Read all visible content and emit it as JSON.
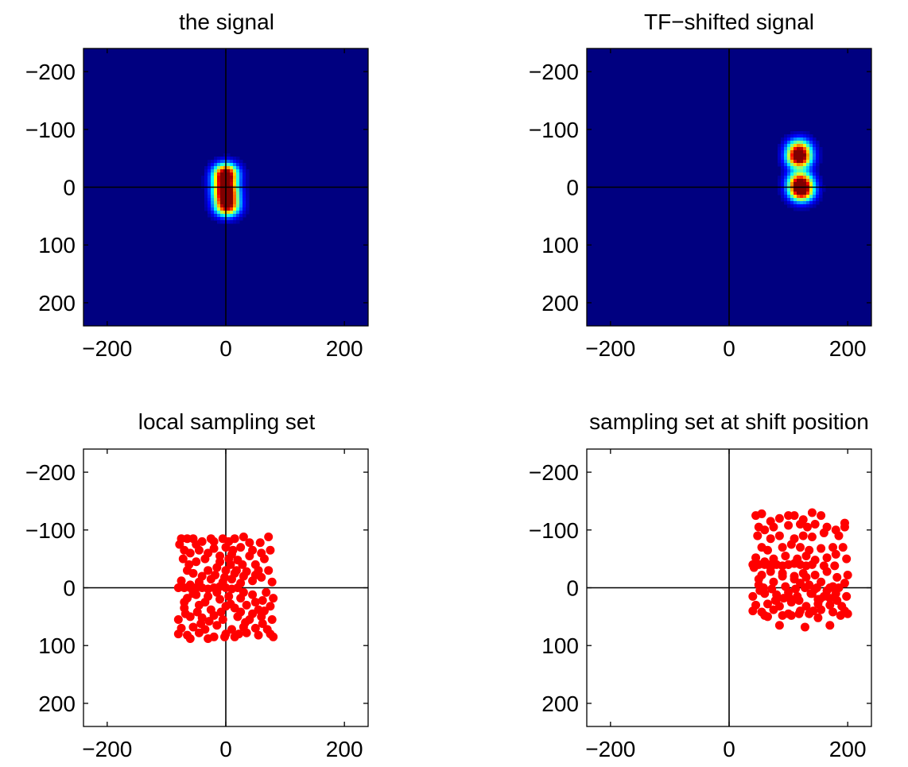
{
  "chart_data": [
    {
      "type": "heatmap",
      "title": "the signal",
      "xlim": [
        -240,
        240
      ],
      "ylim": [
        -240,
        240
      ],
      "y_reversed": true,
      "xticks": [
        -200,
        0,
        200
      ],
      "xtick_labels": [
        "−200",
        "0",
        "200"
      ],
      "yticks": [
        -200,
        -100,
        0,
        100,
        200
      ],
      "ytick_labels": [
        "−200",
        "−100",
        "0",
        "100",
        "200"
      ],
      "crosshair": [
        0,
        0
      ],
      "colormap": "jet",
      "blobs": [
        {
          "x": 0,
          "y": -25,
          "intensity": 0.85
        },
        {
          "x": 0,
          "y": 10,
          "intensity": 1.0
        },
        {
          "x": 2,
          "y": 33,
          "intensity": 0.95
        },
        {
          "x": -2,
          "y": -10,
          "intensity": 0.6
        }
      ]
    },
    {
      "type": "heatmap",
      "title": "TF−shifted signal",
      "xlim": [
        -240,
        240
      ],
      "ylim": [
        -240,
        240
      ],
      "y_reversed": true,
      "xticks": [
        -200,
        0,
        200
      ],
      "xtick_labels": [
        "−200",
        "0",
        "200"
      ],
      "yticks": [
        -200,
        -100,
        0,
        100,
        200
      ],
      "ytick_labels": [
        "−200",
        "−100",
        "0",
        "100",
        "200"
      ],
      "crosshair": [
        0,
        0
      ],
      "colormap": "jet",
      "blobs": [
        {
          "x": 118,
          "y": -68,
          "intensity": 0.6
        },
        {
          "x": 118,
          "y": -50,
          "intensity": 1.0
        },
        {
          "x": 120,
          "y": -10,
          "intensity": 0.85
        },
        {
          "x": 122,
          "y": 8,
          "intensity": 0.95
        }
      ]
    },
    {
      "type": "scatter",
      "title": "local sampling set",
      "xlim": [
        -240,
        240
      ],
      "ylim": [
        -240,
        240
      ],
      "y_reversed": true,
      "xticks": [
        -200,
        0,
        200
      ],
      "xtick_labels": [
        "−200",
        "0",
        "200"
      ],
      "yticks": [
        -200,
        -100,
        0,
        100,
        200
      ],
      "ytick_labels": [
        "−200",
        "−100",
        "0",
        "100",
        "200"
      ],
      "crosshair": [
        0,
        0
      ],
      "color": "#ff0000",
      "points": [
        [
          -75,
          -85
        ],
        [
          -65,
          -85
        ],
        [
          -55,
          -85
        ],
        [
          -40,
          -80
        ],
        [
          -25,
          -85
        ],
        [
          -5,
          -85
        ],
        [
          5,
          -80
        ],
        [
          15,
          -85
        ],
        [
          30,
          -88
        ],
        [
          72,
          -88
        ],
        [
          -70,
          -65
        ],
        [
          -60,
          -60
        ],
        [
          -45,
          -65
        ],
        [
          -20,
          -68
        ],
        [
          0,
          -70
        ],
        [
          12,
          -65
        ],
        [
          25,
          -70
        ],
        [
          45,
          -65
        ],
        [
          60,
          -60
        ],
        [
          75,
          -65
        ],
        [
          -72,
          -50
        ],
        [
          -50,
          -45
        ],
        [
          -35,
          -50
        ],
        [
          -10,
          -45
        ],
        [
          5,
          -50
        ],
        [
          20,
          -48
        ],
        [
          40,
          -55
        ],
        [
          65,
          -50
        ],
        [
          -65,
          -30
        ],
        [
          -55,
          -25
        ],
        [
          -30,
          -30
        ],
        [
          -15,
          -35
        ],
        [
          0,
          -30
        ],
        [
          15,
          -25
        ],
        [
          35,
          -28
        ],
        [
          55,
          -30
        ],
        [
          72,
          -30
        ],
        [
          -75,
          -12
        ],
        [
          -60,
          -5
        ],
        [
          -45,
          -10
        ],
        [
          -25,
          -15
        ],
        [
          -5,
          -10
        ],
        [
          10,
          -15
        ],
        [
          25,
          -8
        ],
        [
          45,
          -12
        ],
        [
          60,
          -18
        ],
        [
          78,
          -10
        ],
        [
          -80,
          0
        ],
        [
          -70,
          0
        ],
        [
          -60,
          0
        ],
        [
          -50,
          0
        ],
        [
          -40,
          0
        ],
        [
          -30,
          2
        ],
        [
          -20,
          0
        ],
        [
          -10,
          -2
        ],
        [
          0,
          0
        ],
        [
          10,
          2
        ],
        [
          20,
          0
        ],
        [
          -65,
          18
        ],
        [
          -50,
          12
        ],
        [
          -30,
          15
        ],
        [
          -10,
          20
        ],
        [
          5,
          15
        ],
        [
          25,
          18
        ],
        [
          45,
          12
        ],
        [
          62,
          22
        ],
        [
          80,
          18
        ],
        [
          -70,
          35
        ],
        [
          -45,
          30
        ],
        [
          -25,
          38
        ],
        [
          0,
          32
        ],
        [
          15,
          35
        ],
        [
          35,
          30
        ],
        [
          55,
          38
        ],
        [
          75,
          32
        ],
        [
          -80,
          55
        ],
        [
          -60,
          50
        ],
        [
          -40,
          52
        ],
        [
          -20,
          48
        ],
        [
          -5,
          55
        ],
        [
          20,
          50
        ],
        [
          40,
          55
        ],
        [
          60,
          50
        ],
        [
          78,
          55
        ],
        [
          -75,
          70
        ],
        [
          -55,
          68
        ],
        [
          -35,
          72
        ],
        [
          -15,
          65
        ],
        [
          10,
          72
        ],
        [
          30,
          68
        ],
        [
          50,
          70
        ],
        [
          70,
          72
        ],
        [
          -80,
          80
        ],
        [
          -65,
          82
        ],
        [
          -45,
          78
        ],
        [
          -20,
          85
        ],
        [
          0,
          80
        ],
        [
          15,
          85
        ],
        [
          35,
          78
        ],
        [
          55,
          82
        ],
        [
          75,
          80
        ],
        [
          80,
          85
        ],
        [
          -78,
          -75
        ],
        [
          -50,
          -75
        ],
        [
          -30,
          -60
        ],
        [
          -10,
          -55
        ],
        [
          8,
          -40
        ],
        [
          28,
          -40
        ],
        [
          50,
          -40
        ],
        [
          -62,
          -40
        ],
        [
          -40,
          -20
        ],
        [
          -18,
          -22
        ],
        [
          -2,
          -18
        ],
        [
          18,
          -30
        ],
        [
          30,
          -20
        ],
        [
          50,
          -22
        ],
        [
          -55,
          10
        ],
        [
          -35,
          25
        ],
        [
          -15,
          8
        ],
        [
          8,
          28
        ],
        [
          30,
          8
        ],
        [
          50,
          25
        ],
        [
          68,
          8
        ],
        [
          -68,
          45
        ],
        [
          -48,
          42
        ],
        [
          -28,
          58
        ],
        [
          -8,
          42
        ],
        [
          25,
          42
        ],
        [
          45,
          45
        ],
        [
          65,
          40
        ],
        [
          -60,
          88
        ],
        [
          -30,
          88
        ],
        [
          -2,
          85
        ],
        [
          22,
          80
        ],
        [
          -70,
          25
        ],
        [
          40,
          -78
        ],
        [
          58,
          -78
        ],
        [
          -20,
          -80
        ],
        [
          10,
          -58
        ],
        [
          -42,
          62
        ],
        [
          33,
          60
        ],
        [
          62,
          62
        ]
      ]
    },
    {
      "type": "scatter",
      "title": "sampling set at shift position",
      "xlim": [
        -240,
        240
      ],
      "ylim": [
        -240,
        240
      ],
      "y_reversed": true,
      "xticks": [
        -200,
        0,
        200
      ],
      "xtick_labels": [
        "−200",
        "0",
        "200"
      ],
      "yticks": [
        -200,
        -100,
        0,
        100,
        200
      ],
      "ytick_labels": [
        "−200",
        "−100",
        "0",
        "100",
        "200"
      ],
      "crosshair": [
        0,
        0
      ],
      "color": "#ff0000",
      "points": [
        [
          45,
          -125
        ],
        [
          55,
          -128
        ],
        [
          70,
          -115
        ],
        [
          85,
          -120
        ],
        [
          100,
          -125
        ],
        [
          110,
          -125
        ],
        [
          125,
          -118
        ],
        [
          140,
          -130
        ],
        [
          155,
          -125
        ],
        [
          195,
          -112
        ],
        [
          50,
          -105
        ],
        [
          60,
          -100
        ],
        [
          75,
          -105
        ],
        [
          100,
          -108
        ],
        [
          120,
          -110
        ],
        [
          132,
          -105
        ],
        [
          145,
          -110
        ],
        [
          165,
          -105
        ],
        [
          180,
          -100
        ],
        [
          195,
          -105
        ],
        [
          48,
          -90
        ],
        [
          70,
          -85
        ],
        [
          85,
          -90
        ],
        [
          110,
          -85
        ],
        [
          125,
          -90
        ],
        [
          140,
          -88
        ],
        [
          160,
          -95
        ],
        [
          185,
          -90
        ],
        [
          55,
          -70
        ],
        [
          65,
          -65
        ],
        [
          90,
          -70
        ],
        [
          105,
          -75
        ],
        [
          120,
          -70
        ],
        [
          135,
          -65
        ],
        [
          155,
          -68
        ],
        [
          175,
          -70
        ],
        [
          192,
          -70
        ],
        [
          45,
          -52
        ],
        [
          60,
          -45
        ],
        [
          75,
          -50
        ],
        [
          95,
          -55
        ],
        [
          115,
          -50
        ],
        [
          130,
          -55
        ],
        [
          145,
          -48
        ],
        [
          165,
          -52
        ],
        [
          180,
          -58
        ],
        [
          198,
          -50
        ],
        [
          40,
          -40
        ],
        [
          50,
          -40
        ],
        [
          60,
          -40
        ],
        [
          70,
          -40
        ],
        [
          80,
          -40
        ],
        [
          90,
          -38
        ],
        [
          100,
          -40
        ],
        [
          110,
          -42
        ],
        [
          120,
          -40
        ],
        [
          130,
          -38
        ],
        [
          140,
          -40
        ],
        [
          55,
          -22
        ],
        [
          70,
          -28
        ],
        [
          90,
          -25
        ],
        [
          110,
          -20
        ],
        [
          125,
          -25
        ],
        [
          145,
          -22
        ],
        [
          165,
          -28
        ],
        [
          182,
          -18
        ],
        [
          200,
          -22
        ],
        [
          50,
          -5
        ],
        [
          75,
          -10
        ],
        [
          95,
          -2
        ],
        [
          120,
          -8
        ],
        [
          135,
          -5
        ],
        [
          155,
          -10
        ],
        [
          175,
          -2
        ],
        [
          195,
          -8
        ],
        [
          40,
          15
        ],
        [
          60,
          10
        ],
        [
          80,
          12
        ],
        [
          100,
          8
        ],
        [
          115,
          15
        ],
        [
          140,
          10
        ],
        [
          160,
          15
        ],
        [
          180,
          10
        ],
        [
          198,
          15
        ],
        [
          45,
          30
        ],
        [
          65,
          28
        ],
        [
          85,
          32
        ],
        [
          105,
          25
        ],
        [
          130,
          32
        ],
        [
          150,
          28
        ],
        [
          170,
          30
        ],
        [
          190,
          32
        ],
        [
          40,
          40
        ],
        [
          55,
          42
        ],
        [
          75,
          38
        ],
        [
          100,
          45
        ],
        [
          120,
          40
        ],
        [
          135,
          45
        ],
        [
          155,
          38
        ],
        [
          175,
          42
        ],
        [
          195,
          40
        ],
        [
          200,
          45
        ],
        [
          42,
          -35
        ],
        [
          70,
          -35
        ],
        [
          90,
          -20
        ],
        [
          110,
          -15
        ],
        [
          128,
          0
        ],
        [
          148,
          0
        ],
        [
          170,
          0
        ],
        [
          58,
          0
        ],
        [
          80,
          20
        ],
        [
          102,
          18
        ],
        [
          118,
          22
        ],
        [
          138,
          10
        ],
        [
          150,
          20
        ],
        [
          170,
          18
        ],
        [
          65,
          50
        ],
        [
          85,
          65
        ],
        [
          105,
          48
        ],
        [
          128,
          68
        ],
        [
          150,
          52
        ],
        [
          170,
          65
        ],
        [
          188,
          48
        ],
        [
          52,
          5
        ],
        [
          72,
          2
        ],
        [
          92,
          18
        ],
        [
          112,
          2
        ],
        [
          145,
          2
        ],
        [
          165,
          5
        ],
        [
          185,
          0
        ],
        [
          60,
          48
        ],
        [
          90,
          48
        ],
        [
          118,
          45
        ],
        [
          142,
          40
        ],
        [
          50,
          -15
        ],
        [
          160,
          -38
        ],
        [
          178,
          -38
        ],
        [
          100,
          -40
        ],
        [
          130,
          -18
        ],
        [
          78,
          22
        ],
        [
          153,
          20
        ],
        [
          182,
          22
        ]
      ]
    }
  ]
}
